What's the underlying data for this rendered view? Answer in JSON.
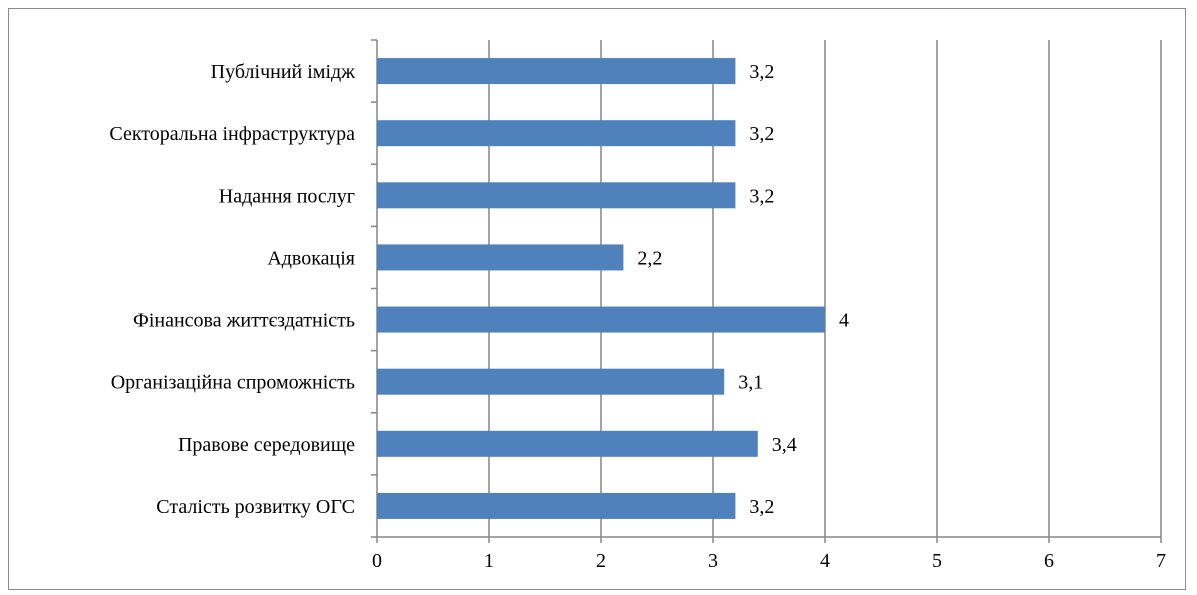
{
  "chart_data": {
    "type": "bar",
    "orientation": "horizontal",
    "categories": [
      "Сталість розвитку ОГС",
      "Правове середовище",
      "Організаційна спроможність",
      "Фінансова життєздатність",
      "Адвокація",
      "Надання послуг",
      "Секторальна інфраструктура",
      "Публічний імідж"
    ],
    "values": [
      3.2,
      3.4,
      3.1,
      4,
      2.2,
      3.2,
      3.2,
      3.2
    ],
    "data_labels": [
      "3,2",
      "3,4",
      "3,1",
      "4",
      "2,2",
      "3,2",
      "3,2",
      "3,2"
    ],
    "xlim": [
      0,
      7
    ],
    "x_ticks": [
      "0",
      "1",
      "2",
      "3",
      "4",
      "5",
      "6",
      "7"
    ],
    "grid": "vertical major gridlines",
    "bar_color": "#4f81bd",
    "gridline_color": "#868686",
    "title": "",
    "xlabel": "",
    "ylabel": ""
  }
}
